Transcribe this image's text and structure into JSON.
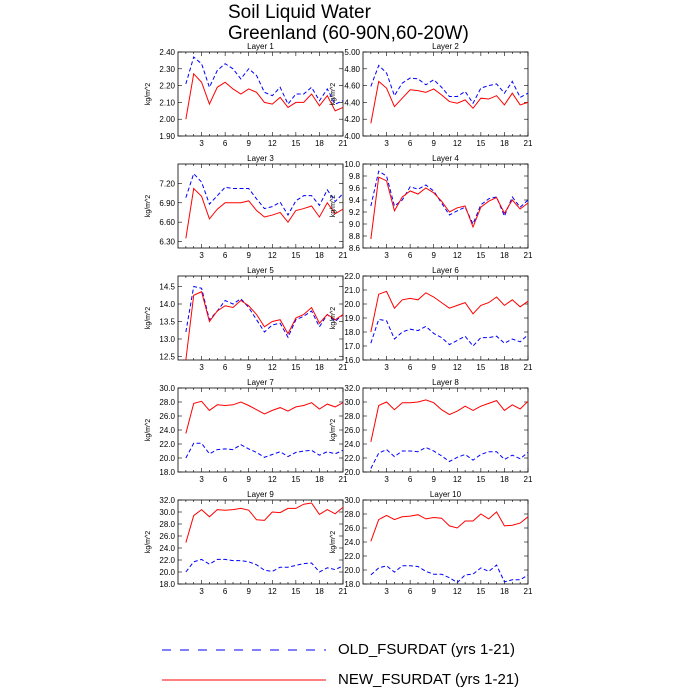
{
  "title_line1": "Soil Liquid Water",
  "title_line2": "Greenland (60-90N,60-20W)",
  "legend": {
    "old_label": "OLD_FSURDAT (yrs 1-21)",
    "new_label": "NEW_FSURDAT (yrs 1-21)"
  },
  "colors": {
    "old": "#0000ff",
    "new": "#ff0000"
  },
  "chart_data": [
    {
      "type": "line",
      "title": "Layer 1",
      "ylabel": "kg/m^2",
      "x": [
        1,
        2,
        3,
        4,
        5,
        6,
        7,
        8,
        9,
        10,
        11,
        12,
        13,
        14,
        15,
        16,
        17,
        18,
        19,
        20,
        21
      ],
      "xticks": [
        3,
        6,
        9,
        12,
        15,
        18,
        21
      ],
      "xlim": [
        0,
        21
      ],
      "ylim": [
        1.9,
        2.4
      ],
      "yticks": [
        "1.90",
        "2.00",
        "2.10",
        "2.20",
        "2.30",
        "2.40"
      ],
      "series": [
        {
          "name": "OLD_FSURDAT",
          "style": "dashed",
          "color": "#0000ff",
          "values": [
            2.21,
            2.37,
            2.33,
            2.19,
            2.29,
            2.33,
            2.3,
            2.24,
            2.3,
            2.26,
            2.16,
            2.14,
            2.19,
            2.09,
            2.15,
            2.15,
            2.19,
            2.11,
            2.18,
            2.09,
            2.11
          ]
        },
        {
          "name": "NEW_FSURDAT",
          "style": "solid",
          "color": "#ff0000",
          "values": [
            2.0,
            2.27,
            2.22,
            2.09,
            2.19,
            2.22,
            2.18,
            2.15,
            2.18,
            2.16,
            2.1,
            2.09,
            2.13,
            2.07,
            2.1,
            2.1,
            2.15,
            2.08,
            2.14,
            2.05,
            2.07
          ]
        }
      ]
    },
    {
      "type": "line",
      "title": "Layer 2",
      "ylabel": "kg/m^2",
      "x": [
        1,
        2,
        3,
        4,
        5,
        6,
        7,
        8,
        9,
        10,
        11,
        12,
        13,
        14,
        15,
        16,
        17,
        18,
        19,
        20,
        21
      ],
      "xticks": [
        3,
        6,
        9,
        12,
        15,
        18,
        21
      ],
      "xlim": [
        0,
        21
      ],
      "ylim": [
        4.0,
        5.0
      ],
      "yticks": [
        "4.00",
        "4.20",
        "4.40",
        "4.60",
        "4.80",
        "5.00"
      ],
      "series": [
        {
          "name": "OLD_FSURDAT",
          "style": "dashed",
          "color": "#0000ff",
          "values": [
            4.59,
            4.84,
            4.75,
            4.48,
            4.63,
            4.69,
            4.68,
            4.61,
            4.67,
            4.58,
            4.47,
            4.47,
            4.53,
            4.39,
            4.57,
            4.6,
            4.62,
            4.51,
            4.65,
            4.46,
            4.51
          ]
        },
        {
          "name": "NEW_FSURDAT",
          "style": "solid",
          "color": "#ff0000",
          "values": [
            4.15,
            4.65,
            4.57,
            4.35,
            4.45,
            4.55,
            4.54,
            4.52,
            4.56,
            4.49,
            4.41,
            4.39,
            4.43,
            4.33,
            4.45,
            4.44,
            4.48,
            4.37,
            4.51,
            4.37,
            4.4
          ]
        }
      ]
    },
    {
      "type": "line",
      "title": "Layer 3",
      "ylabel": "kg/m^2",
      "x": [
        1,
        2,
        3,
        4,
        5,
        6,
        7,
        8,
        9,
        10,
        11,
        12,
        13,
        14,
        15,
        16,
        17,
        18,
        19,
        20,
        21
      ],
      "xticks": [
        3,
        6,
        9,
        12,
        15,
        18,
        21
      ],
      "xlim": [
        0,
        21
      ],
      "ylim": [
        6.2,
        7.5
      ],
      "yticks": [
        "6.30",
        "6.60",
        "6.90",
        "7.20"
      ],
      "series": [
        {
          "name": "OLD_FSURDAT",
          "style": "dashed",
          "color": "#0000ff",
          "values": [
            6.98,
            7.35,
            7.22,
            6.88,
            7.01,
            7.14,
            7.12,
            7.12,
            7.12,
            6.96,
            6.81,
            6.84,
            6.91,
            6.71,
            6.93,
            7.01,
            7.01,
            6.86,
            7.1,
            6.92,
            7.04
          ]
        },
        {
          "name": "NEW_FSURDAT",
          "style": "solid",
          "color": "#ff0000",
          "values": [
            6.35,
            7.12,
            7.0,
            6.65,
            6.8,
            6.9,
            6.9,
            6.9,
            6.93,
            6.78,
            6.68,
            6.71,
            6.75,
            6.6,
            6.78,
            6.81,
            6.85,
            6.68,
            6.9,
            6.73,
            6.8
          ]
        }
      ]
    },
    {
      "type": "line",
      "title": "Layer 4",
      "ylabel": "kg/m^2",
      "x": [
        1,
        2,
        3,
        4,
        5,
        6,
        7,
        8,
        9,
        10,
        11,
        12,
        13,
        14,
        15,
        16,
        17,
        18,
        19,
        20,
        21
      ],
      "xticks": [
        3,
        6,
        9,
        12,
        15,
        18,
        21
      ],
      "xlim": [
        0,
        21
      ],
      "ylim": [
        8.6,
        10.0
      ],
      "yticks": [
        "8.6",
        "8.8",
        "9.0",
        "9.2",
        "9.4",
        "9.6",
        "9.8",
        "10.0"
      ],
      "series": [
        {
          "name": "OLD_FSURDAT",
          "style": "dashed",
          "color": "#0000ff",
          "values": [
            9.3,
            9.88,
            9.8,
            9.3,
            9.4,
            9.62,
            9.58,
            9.65,
            9.55,
            9.35,
            9.15,
            9.22,
            9.28,
            9.0,
            9.32,
            9.42,
            9.45,
            9.13,
            9.45,
            9.28,
            9.4
          ]
        },
        {
          "name": "NEW_FSURDAT",
          "style": "solid",
          "color": "#ff0000",
          "values": [
            8.75,
            9.78,
            9.72,
            9.22,
            9.45,
            9.55,
            9.5,
            9.6,
            9.52,
            9.38,
            9.2,
            9.27,
            9.3,
            8.95,
            9.28,
            9.38,
            9.44,
            9.18,
            9.4,
            9.25,
            9.35
          ]
        }
      ]
    },
    {
      "type": "line",
      "title": "Layer 5",
      "ylabel": "kg/m^2",
      "x": [
        1,
        2,
        3,
        4,
        5,
        6,
        7,
        8,
        9,
        10,
        11,
        12,
        13,
        14,
        15,
        16,
        17,
        18,
        19,
        20,
        21
      ],
      "xticks": [
        3,
        6,
        9,
        12,
        15,
        18,
        21
      ],
      "xlim": [
        0,
        21
      ],
      "ylim": [
        12.4,
        14.8
      ],
      "yticks": [
        "12.5",
        "13.0",
        "13.5",
        "14.0",
        "14.5"
      ],
      "series": [
        {
          "name": "OLD_FSURDAT",
          "style": "dashed",
          "color": "#0000ff",
          "values": [
            13.2,
            14.5,
            14.45,
            13.55,
            13.8,
            14.1,
            14.0,
            14.15,
            13.9,
            13.55,
            13.2,
            13.4,
            13.45,
            13.05,
            13.55,
            13.65,
            13.8,
            13.35,
            13.7,
            13.5,
            13.7
          ]
        },
        {
          "name": "NEW_FSURDAT",
          "style": "solid",
          "color": "#ff0000",
          "values": [
            12.4,
            14.25,
            14.35,
            13.5,
            13.8,
            13.95,
            13.9,
            14.1,
            13.95,
            13.7,
            13.35,
            13.5,
            13.55,
            13.15,
            13.6,
            13.7,
            13.9,
            13.45,
            13.7,
            13.55,
            13.7
          ]
        }
      ]
    },
    {
      "type": "line",
      "title": "Layer 6",
      "ylabel": "kg/m^2",
      "x": [
        1,
        2,
        3,
        4,
        5,
        6,
        7,
        8,
        9,
        10,
        11,
        12,
        13,
        14,
        15,
        16,
        17,
        18,
        19,
        20,
        21
      ],
      "xticks": [
        3,
        6,
        9,
        12,
        15,
        18,
        21
      ],
      "xlim": [
        0,
        21
      ],
      "ylim": [
        16.0,
        22.0
      ],
      "yticks": [
        "16.0",
        "17.0",
        "18.0",
        "19.0",
        "20.0",
        "21.0",
        "22.0"
      ],
      "series": [
        {
          "name": "OLD_FSURDAT",
          "style": "dashed",
          "color": "#0000ff",
          "values": [
            17.2,
            18.9,
            18.8,
            17.5,
            18.0,
            18.2,
            18.1,
            18.4,
            17.9,
            17.6,
            17.1,
            17.4,
            17.7,
            17.0,
            17.6,
            17.6,
            17.7,
            17.2,
            17.5,
            17.3,
            17.8
          ]
        },
        {
          "name": "NEW_FSURDAT",
          "style": "solid",
          "color": "#ff0000",
          "values": [
            18.0,
            20.7,
            20.9,
            19.7,
            20.3,
            20.4,
            20.3,
            20.8,
            20.5,
            20.1,
            19.7,
            19.9,
            20.1,
            19.3,
            19.9,
            20.1,
            20.5,
            19.9,
            20.3,
            19.8,
            20.2
          ]
        }
      ]
    },
    {
      "type": "line",
      "title": "Layer 7",
      "ylabel": "kg/m^2",
      "x": [
        1,
        2,
        3,
        4,
        5,
        6,
        7,
        8,
        9,
        10,
        11,
        12,
        13,
        14,
        15,
        16,
        17,
        18,
        19,
        20,
        21
      ],
      "xticks": [
        3,
        6,
        9,
        12,
        15,
        18,
        21
      ],
      "xlim": [
        0,
        21
      ],
      "ylim": [
        18.0,
        30.0
      ],
      "yticks": [
        "18.0",
        "20.0",
        "22.0",
        "24.0",
        "26.0",
        "28.0",
        "30.0"
      ],
      "series": [
        {
          "name": "OLD_FSURDAT",
          "style": "dashed",
          "color": "#0000ff",
          "values": [
            20.0,
            22.1,
            22.1,
            20.6,
            21.2,
            21.3,
            21.2,
            21.9,
            21.3,
            20.8,
            20.1,
            20.5,
            20.9,
            20.2,
            20.8,
            21.0,
            21.1,
            20.4,
            20.9,
            20.6,
            21.1
          ]
        },
        {
          "name": "NEW_FSURDAT",
          "style": "solid",
          "color": "#ff0000",
          "values": [
            23.5,
            27.8,
            28.1,
            26.8,
            27.6,
            27.5,
            27.6,
            28.0,
            27.5,
            26.9,
            26.3,
            26.8,
            27.2,
            26.7,
            27.3,
            27.5,
            27.9,
            27.0,
            27.7,
            27.3,
            27.9
          ]
        }
      ]
    },
    {
      "type": "line",
      "title": "Layer 8",
      "ylabel": "kg/m^2",
      "x": [
        1,
        2,
        3,
        4,
        5,
        6,
        7,
        8,
        9,
        10,
        11,
        12,
        13,
        14,
        15,
        16,
        17,
        18,
        19,
        20,
        21
      ],
      "xticks": [
        3,
        6,
        9,
        12,
        15,
        18,
        21
      ],
      "xlim": [
        0,
        21
      ],
      "ylim": [
        20.0,
        32.0
      ],
      "yticks": [
        "20.0",
        "22.0",
        "24.0",
        "26.0",
        "28.0",
        "30.0",
        "32.0"
      ],
      "series": [
        {
          "name": "OLD_FSURDAT",
          "style": "dashed",
          "color": "#0000ff",
          "values": [
            20.5,
            22.7,
            23.2,
            22.2,
            23.0,
            23.0,
            22.9,
            23.5,
            23.0,
            22.3,
            21.5,
            22.1,
            22.5,
            21.7,
            22.5,
            22.9,
            22.9,
            21.8,
            22.4,
            21.9,
            22.8
          ]
        },
        {
          "name": "NEW_FSURDAT",
          "style": "solid",
          "color": "#ff0000",
          "values": [
            24.3,
            29.5,
            30.0,
            28.9,
            29.9,
            29.9,
            30.0,
            30.3,
            29.9,
            28.9,
            28.2,
            28.7,
            29.4,
            28.8,
            29.4,
            29.8,
            30.2,
            28.8,
            29.6,
            29.0,
            30.1
          ]
        }
      ]
    },
    {
      "type": "line",
      "title": "Layer 9",
      "ylabel": "kg/m^2",
      "x": [
        1,
        2,
        3,
        4,
        5,
        6,
        7,
        8,
        9,
        10,
        11,
        12,
        13,
        14,
        15,
        16,
        17,
        18,
        19,
        20,
        21
      ],
      "xticks": [
        3,
        6,
        9,
        12,
        15,
        18,
        21
      ],
      "xlim": [
        0,
        21
      ],
      "ylim": [
        18.0,
        32.0
      ],
      "yticks": [
        "18.0",
        "20.0",
        "22.0",
        "24.0",
        "26.0",
        "28.0",
        "30.0",
        "32.0"
      ],
      "series": [
        {
          "name": "OLD_FSURDAT",
          "style": "dashed",
          "color": "#0000ff",
          "values": [
            20.0,
            21.7,
            22.1,
            21.3,
            22.1,
            22.1,
            21.9,
            21.9,
            21.7,
            21.2,
            20.3,
            20.1,
            20.8,
            20.8,
            21.1,
            21.4,
            21.5,
            20.0,
            20.7,
            20.4,
            21.0
          ]
        },
        {
          "name": "NEW_FSURDAT",
          "style": "solid",
          "color": "#ff0000",
          "values": [
            24.9,
            29.4,
            30.4,
            29.2,
            30.4,
            30.3,
            30.4,
            30.6,
            30.3,
            28.7,
            28.6,
            30.0,
            29.9,
            30.6,
            30.6,
            31.3,
            31.5,
            29.6,
            30.4,
            29.7,
            30.8
          ]
        }
      ]
    },
    {
      "type": "line",
      "title": "Layer 10",
      "ylabel": "kg/m^2",
      "x": [
        1,
        2,
        3,
        4,
        5,
        6,
        7,
        8,
        9,
        10,
        11,
        12,
        13,
        14,
        15,
        16,
        17,
        18,
        19,
        20,
        21
      ],
      "xticks": [
        3,
        6,
        9,
        12,
        15,
        18,
        21
      ],
      "xlim": [
        0,
        21
      ],
      "ylim": [
        18.0,
        30.0
      ],
      "yticks": [
        "18.0",
        "20.0",
        "22.0",
        "24.0",
        "26.0",
        "28.0",
        "30.0"
      ],
      "series": [
        {
          "name": "OLD_FSURDAT",
          "style": "dashed",
          "color": "#0000ff",
          "values": [
            19.3,
            20.3,
            20.6,
            19.7,
            20.6,
            20.6,
            20.5,
            19.8,
            19.4,
            19.4,
            18.9,
            18.2,
            19.3,
            19.4,
            20.3,
            19.8,
            20.7,
            18.3,
            18.6,
            18.6,
            19.3
          ]
        },
        {
          "name": "NEW_FSURDAT",
          "style": "solid",
          "color": "#ff0000",
          "values": [
            24.1,
            27.2,
            27.8,
            27.2,
            27.6,
            27.7,
            27.9,
            27.3,
            27.5,
            27.4,
            26.3,
            26.0,
            27.0,
            27.0,
            28.0,
            27.3,
            28.3,
            26.3,
            26.4,
            26.7,
            27.6
          ]
        }
      ]
    }
  ]
}
